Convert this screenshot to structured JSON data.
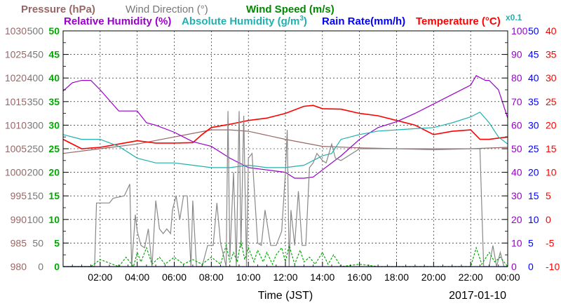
{
  "chart_data": {
    "type": "line",
    "xlabel": "Time (JST)",
    "date": "2017-01-10",
    "x_ticks": [
      "02:00",
      "04:00",
      "06:00",
      "08:00",
      "10:00",
      "12:00",
      "14:00",
      "16:00",
      "18:00",
      "20:00",
      "22:00",
      "00:00"
    ],
    "xlim_hours": [
      0,
      24
    ],
    "grid": true,
    "header": {
      "pressure": "Pressure (hPa)",
      "wind_direction": "Wind Direction (°)",
      "wind_speed": "Wind Speed (m/s)",
      "relative_humidity": "Relative Humidity (%)",
      "absolute_humidity": "Absolute Humidity (g/m",
      "absolute_humidity_exp": "3",
      "absolute_humidity_close": ")",
      "rain_rate": "Rain Rate(mm/h)",
      "temperature": "Temperature (°C)",
      "multiplier": "x0.1"
    },
    "axes": {
      "pressure": {
        "ylim": [
          980,
          1030
        ],
        "ticks": [
          "1030",
          "1025",
          "1020",
          "1015",
          "1010",
          "1005",
          "1000",
          "995",
          "990",
          "985",
          "980"
        ],
        "color": "#996666"
      },
      "wind_direction": {
        "ylim": [
          0,
          500
        ],
        "ticks": [
          "500",
          "450",
          "400",
          "350",
          "300",
          "250",
          "200",
          "150",
          "100",
          "50",
          "0"
        ],
        "color": "#777777"
      },
      "wind_speed": {
        "ylim": [
          0,
          50
        ],
        "ticks": [
          "50",
          "45",
          "40",
          "35",
          "30",
          "25",
          "20",
          "15",
          "10",
          "5",
          "0"
        ],
        "color": "#00aa00"
      },
      "relative_humidity": {
        "ylim": [
          0,
          100
        ],
        "ticks": [
          "100",
          "90",
          "80",
          "70",
          "60",
          "50",
          "40",
          "30",
          "20",
          "10",
          "0"
        ],
        "color": "#9900cc"
      },
      "rain_rate": {
        "ylim": [
          0,
          50
        ],
        "ticks": [
          "50",
          "45",
          "40",
          "35",
          "30",
          "25",
          "20",
          "15",
          "10",
          "5",
          "0"
        ],
        "color": "#0000ff"
      },
      "temperature": {
        "ylim": [
          -10,
          40
        ],
        "ticks": [
          "40",
          "35",
          "30",
          "25",
          "20",
          "15",
          "10",
          "5",
          "0",
          "-5",
          "-10"
        ],
        "color": "#ff0000"
      }
    },
    "series": [
      {
        "name": "Pressure (hPa)",
        "axis": "pressure",
        "color": "#996666",
        "points": [
          [
            0,
            1004
          ],
          [
            2,
            1005
          ],
          [
            4,
            1006
          ],
          [
            6,
            1007.5
          ],
          [
            8,
            1009
          ],
          [
            9,
            1009
          ],
          [
            10,
            1008.7
          ],
          [
            12,
            1007
          ],
          [
            14,
            1005.5
          ],
          [
            16,
            1005.2
          ],
          [
            18,
            1005
          ],
          [
            20,
            1004.8
          ],
          [
            22,
            1005
          ],
          [
            24,
            1005.3
          ]
        ]
      },
      {
        "name": "Temperature (°C)",
        "axis": "temperature",
        "color": "#ff0000",
        "points": [
          [
            0,
            17
          ],
          [
            1,
            15
          ],
          [
            2,
            15.3
          ],
          [
            3,
            16
          ],
          [
            4,
            16.7
          ],
          [
            5,
            16.2
          ],
          [
            6,
            16.2
          ],
          [
            7,
            16.3
          ],
          [
            7.5,
            18
          ],
          [
            8,
            19.5
          ],
          [
            9,
            20.2
          ],
          [
            10,
            21
          ],
          [
            11,
            21.5
          ],
          [
            12,
            22.5
          ],
          [
            13,
            24
          ],
          [
            13.5,
            24.2
          ],
          [
            14,
            23.5
          ],
          [
            15,
            23.4
          ],
          [
            16,
            22.5
          ],
          [
            17,
            22
          ],
          [
            18,
            21
          ],
          [
            19,
            20
          ],
          [
            20,
            18
          ],
          [
            21,
            18.7
          ],
          [
            22,
            19
          ],
          [
            22.5,
            17
          ],
          [
            23,
            17
          ],
          [
            24,
            17.5
          ]
        ]
      },
      {
        "name": "Relative Humidity (%)",
        "axis": "relative_humidity",
        "color": "#9900cc",
        "points": [
          [
            0,
            74.5
          ],
          [
            0.5,
            78
          ],
          [
            1,
            79
          ],
          [
            1.5,
            79
          ],
          [
            2,
            75
          ],
          [
            3,
            66
          ],
          [
            4,
            66
          ],
          [
            4.5,
            61
          ],
          [
            5,
            60
          ],
          [
            6,
            57
          ],
          [
            7,
            53
          ],
          [
            8,
            51
          ],
          [
            9,
            46
          ],
          [
            10,
            42
          ],
          [
            11,
            41
          ],
          [
            12,
            40
          ],
          [
            12.5,
            37.5
          ],
          [
            13,
            37.5
          ],
          [
            13.5,
            38
          ],
          [
            14,
            41
          ],
          [
            15,
            47
          ],
          [
            16,
            54
          ],
          [
            17,
            59
          ],
          [
            18,
            61.5
          ],
          [
            19,
            65
          ],
          [
            20,
            69
          ],
          [
            21,
            73
          ],
          [
            22,
            77
          ],
          [
            22.3,
            81
          ],
          [
            22.8,
            79
          ],
          [
            23,
            79
          ],
          [
            23.5,
            75
          ],
          [
            24,
            63
          ]
        ]
      },
      {
        "name": "Absolute Humidity (g/m3)",
        "axis": "relative_humidity",
        "color": "#20b0b0",
        "points": [
          [
            0,
            56
          ],
          [
            1,
            54
          ],
          [
            2,
            54
          ],
          [
            3,
            51
          ],
          [
            4,
            46
          ],
          [
            5,
            44
          ],
          [
            6,
            44
          ],
          [
            7,
            43
          ],
          [
            8,
            42
          ],
          [
            9,
            42
          ],
          [
            10,
            43
          ],
          [
            11,
            42
          ],
          [
            12,
            42
          ],
          [
            13,
            43
          ],
          [
            14,
            47
          ],
          [
            14.5,
            48
          ],
          [
            15,
            54
          ],
          [
            16,
            56
          ],
          [
            17,
            57.5
          ],
          [
            18,
            58
          ],
          [
            19,
            58.5
          ],
          [
            20,
            59
          ],
          [
            21,
            61
          ],
          [
            22,
            63.5
          ],
          [
            22.5,
            65.5
          ],
          [
            23,
            61
          ],
          [
            23.5,
            55
          ],
          [
            24,
            52
          ]
        ]
      },
      {
        "name": "Wind Direction (°)",
        "axis": "wind_direction",
        "color": "#888888",
        "points": [
          [
            0,
            0
          ],
          [
            1.7,
            0
          ],
          [
            1.8,
            135
          ],
          [
            2.5,
            135
          ],
          [
            2.7,
            145
          ],
          [
            3.3,
            150
          ],
          [
            3.6,
            175
          ],
          [
            3.7,
            0
          ],
          [
            3.9,
            110
          ],
          [
            4,
            75
          ],
          [
            4.2,
            45
          ],
          [
            4.4,
            40
          ],
          [
            4.6,
            80
          ],
          [
            4.8,
            0
          ],
          [
            5,
            140
          ],
          [
            5.2,
            80
          ],
          [
            5.4,
            70
          ],
          [
            5.6,
            80
          ],
          [
            5.8,
            70
          ],
          [
            5.9,
            120
          ],
          [
            6.1,
            150
          ],
          [
            6.3,
            100
          ],
          [
            6.5,
            150
          ],
          [
            6.7,
            150
          ],
          [
            6.9,
            0
          ],
          [
            7,
            140
          ],
          [
            7.2,
            0
          ],
          [
            7.5,
            0
          ],
          [
            7.8,
            45
          ],
          [
            8.1,
            45
          ],
          [
            8.3,
            135
          ],
          [
            8.5,
            50
          ],
          [
            8.8,
            0
          ],
          [
            8.9,
            330
          ],
          [
            9,
            20
          ],
          [
            9.2,
            200
          ],
          [
            9.35,
            0
          ],
          [
            9.5,
            330
          ],
          [
            9.6,
            40
          ],
          [
            9.75,
            320
          ],
          [
            9.9,
            0
          ],
          [
            10,
            230
          ],
          [
            10.2,
            240
          ],
          [
            10.5,
            50
          ],
          [
            10.7,
            45
          ],
          [
            10.9,
            120
          ],
          [
            11.2,
            45
          ],
          [
            11.5,
            45
          ],
          [
            11.8,
            75
          ],
          [
            12,
            200
          ],
          [
            12.1,
            290
          ],
          [
            12.2,
            0
          ],
          [
            12.3,
            120
          ],
          [
            12.5,
            45
          ],
          [
            12.7,
            160
          ],
          [
            12.9,
            45
          ],
          [
            13.1,
            45
          ],
          [
            13.3,
            210
          ],
          [
            13.5,
            220
          ],
          [
            13.7,
            240
          ],
          [
            14,
            225
          ],
          [
            14.2,
            220
          ],
          [
            14.5,
            260
          ],
          [
            14.7,
            230
          ],
          [
            15,
            225
          ],
          [
            16,
            250
          ],
          [
            18,
            250
          ],
          [
            20,
            250
          ],
          [
            21.5,
            250
          ],
          [
            22.5,
            250
          ],
          [
            22.7,
            0
          ],
          [
            23,
            0
          ],
          [
            23.2,
            45
          ],
          [
            23.4,
            0
          ],
          [
            23.6,
            30
          ],
          [
            23.8,
            0
          ],
          [
            24,
            0
          ]
        ]
      },
      {
        "name": "Wind Speed (m/s)",
        "axis": "wind_speed",
        "color": "#00aa00",
        "points": [
          [
            0,
            0
          ],
          [
            1.5,
            0
          ],
          [
            2,
            1.5
          ],
          [
            3,
            0
          ],
          [
            3.4,
            2
          ],
          [
            3.8,
            0
          ],
          [
            4,
            3
          ],
          [
            4.2,
            1
          ],
          [
            4.5,
            4
          ],
          [
            4.8,
            0.5
          ],
          [
            5.2,
            2
          ],
          [
            5.5,
            0.5
          ],
          [
            6,
            2
          ],
          [
            6.5,
            0.5
          ],
          [
            7,
            1.5
          ],
          [
            7.5,
            0.5
          ],
          [
            8,
            2
          ],
          [
            8.5,
            0.5
          ],
          [
            8.8,
            4.5
          ],
          [
            9,
            1
          ],
          [
            9.2,
            3
          ],
          [
            9.4,
            1
          ],
          [
            9.6,
            5.5
          ],
          [
            9.8,
            1.5
          ],
          [
            10,
            4
          ],
          [
            10.3,
            1
          ],
          [
            10.5,
            3.5
          ],
          [
            10.8,
            1
          ],
          [
            11,
            3
          ],
          [
            11.3,
            0.5
          ],
          [
            11.5,
            2.5
          ],
          [
            11.8,
            4
          ],
          [
            12,
            1
          ],
          [
            12.2,
            4.5
          ],
          [
            12.5,
            0.5
          ],
          [
            12.8,
            3.5
          ],
          [
            13,
            1
          ],
          [
            13.3,
            2
          ],
          [
            13.6,
            0.5
          ],
          [
            14,
            3
          ],
          [
            14.3,
            0.5
          ],
          [
            14.6,
            2.5
          ],
          [
            15,
            0
          ],
          [
            16,
            0.5
          ],
          [
            17,
            0
          ],
          [
            18,
            0
          ],
          [
            20,
            0
          ],
          [
            22,
            0
          ],
          [
            22.3,
            4
          ],
          [
            22.6,
            0.5
          ],
          [
            23,
            3
          ],
          [
            23.3,
            1
          ],
          [
            23.6,
            2
          ],
          [
            24,
            0
          ]
        ]
      },
      {
        "name": "Rain Rate(mm/h)",
        "axis": "rain_rate",
        "color": "#0000ff",
        "points": [
          [
            0,
            0
          ],
          [
            24,
            0
          ]
        ]
      }
    ]
  }
}
